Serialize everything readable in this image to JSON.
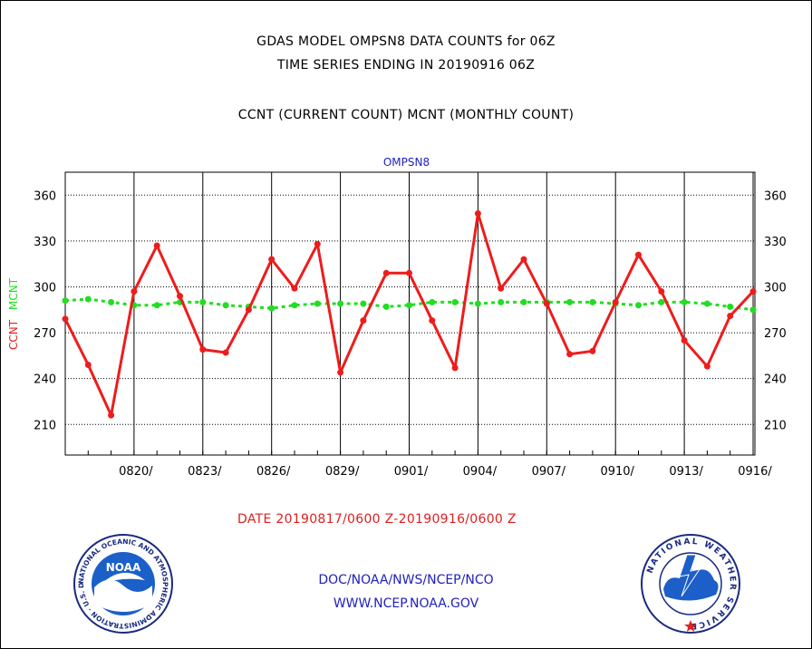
{
  "header": {
    "line1": "GDAS MODEL OMPSN8 DATA COUNTS for 06Z",
    "line2": "TIME SERIES ENDING IN 20190916 06Z",
    "line3": "CCNT (CURRENT COUNT) MCNT (MONTHLY COUNT)"
  },
  "footer": {
    "date_range": "DATE 20190817/0600 Z-20190916/0600 Z",
    "org_path": "DOC/NOAA/NWS/NCEP/NCO",
    "website": "WWW.NCEP.NOAA.GOV"
  },
  "logos": {
    "noaa_label": "NOAA",
    "noaa_ring": "NATIONAL OCEANIC AND ATMOSPHERIC ADMINISTRATION · U.S. DEPARTMENT OF COMMERCE",
    "nws_ring": "NATIONAL WEATHER SERVICE"
  },
  "colors": {
    "ccnt": "#ee1c1c",
    "mcnt": "#22dd22",
    "legend_text": "#2020c0",
    "grid": "#000000"
  },
  "chart_data": {
    "type": "line",
    "title": "OMPSN8",
    "ylabel_ccnt": "CCNT",
    "ylabel_mcnt": "MCNT",
    "x_tick_labels": [
      "0820/",
      "0823/",
      "0826/",
      "0829/",
      "0901/",
      "0904/",
      "0907/",
      "0910/",
      "0913/",
      "0916/"
    ],
    "x_dates": [
      "0817",
      "0818",
      "0819",
      "0820",
      "0821",
      "0822",
      "0823",
      "0824",
      "0825",
      "0826",
      "0827",
      "0828",
      "0829",
      "0830",
      "0831",
      "0901",
      "0902",
      "0903",
      "0904",
      "0905",
      "0906",
      "0907",
      "0908",
      "0909",
      "0910",
      "0911",
      "0912",
      "0913",
      "0914",
      "0915",
      "0916"
    ],
    "y_ticks": [
      210,
      240,
      270,
      300,
      330,
      360
    ],
    "ylim": [
      190,
      375
    ],
    "grid": true,
    "series": [
      {
        "name": "CCNT",
        "values": [
          279,
          249,
          216,
          297,
          327,
          294,
          259,
          257,
          285,
          318,
          299,
          328,
          244,
          278,
          309,
          309,
          278,
          247,
          348,
          299,
          318,
          289,
          256,
          258,
          290,
          321,
          297,
          265,
          248,
          281,
          297
        ]
      },
      {
        "name": "MCNT",
        "values": [
          291,
          292,
          290,
          288,
          288,
          290,
          290,
          288,
          287,
          286,
          288,
          289,
          289,
          289,
          287,
          288,
          290,
          290,
          289,
          290,
          290,
          290,
          290,
          290,
          289,
          288,
          290,
          290,
          289,
          287,
          285
        ]
      }
    ]
  }
}
